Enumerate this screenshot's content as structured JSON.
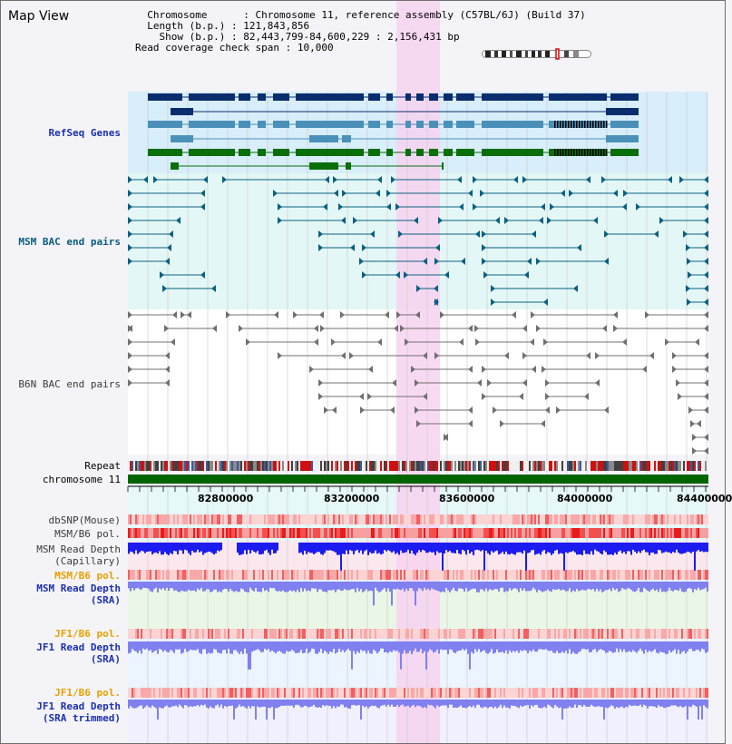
{
  "window": {
    "title": "Map View"
  },
  "header": {
    "rows": [
      {
        "label": "Chromosome",
        "value": "Chromosome 11, reference assembly (C57BL/6J) (Build 37)"
      },
      {
        "label": "Length (b.p.)",
        "value": "121,843,856"
      },
      {
        "label": "Show (b.p.)",
        "value": "82,443,799-84,600,229 : 2,156,431 bp"
      },
      {
        "label": "Read coverage check span",
        "value": "10,000"
      }
    ]
  },
  "tracks": {
    "refseq": "RefSeq Genes",
    "msm_bac": "MSM BAC end pairs",
    "b6n_bac": "B6N BAC end pairs",
    "repeat": "Repeat",
    "chromosome": "chromosome 11",
    "dbsnp": "dbSNP(Mouse)",
    "msm_b6_pol_1": "MSM/B6 pol.",
    "msm_depth_cap_line1": "MSM Read Depth",
    "msm_depth_cap_line2": "(Capillary)",
    "msm_b6_pol_2": "MSM/B6 pol.",
    "msm_depth_sra_line1": "MSM Read Depth",
    "msm_depth_sra_line2": "(SRA)",
    "jf1_b6_pol_1": "JF1/B6 pol.",
    "jf1_depth_sra_line1": "JF1 Read Depth",
    "jf1_depth_sra_line2": "(SRA)",
    "jf1_b6_pol_2": "JF1/B6 pol.",
    "jf1_depth_trim_line1": "JF1 Read Depth",
    "jf1_depth_trim_line2": "(SRA trimmed)"
  },
  "axis": {
    "ticks": [
      "82800000",
      "83200000",
      "83600000",
      "84000000",
      "84400000"
    ]
  },
  "colors": {
    "highlight": "#f7d2f0",
    "refseq_bg": "#d8eefa",
    "navy": "#0a2d6e",
    "steel": "#4a90b8",
    "green": "#0a6e0a",
    "chromosome": "#006400",
    "teal": "#0a6080",
    "gray": "#707070",
    "depth_capillary": "#1c1cf0",
    "depth_sra": "#8080f0",
    "pol": "#f04040",
    "pol_light": "#f8b0b0"
  }
}
